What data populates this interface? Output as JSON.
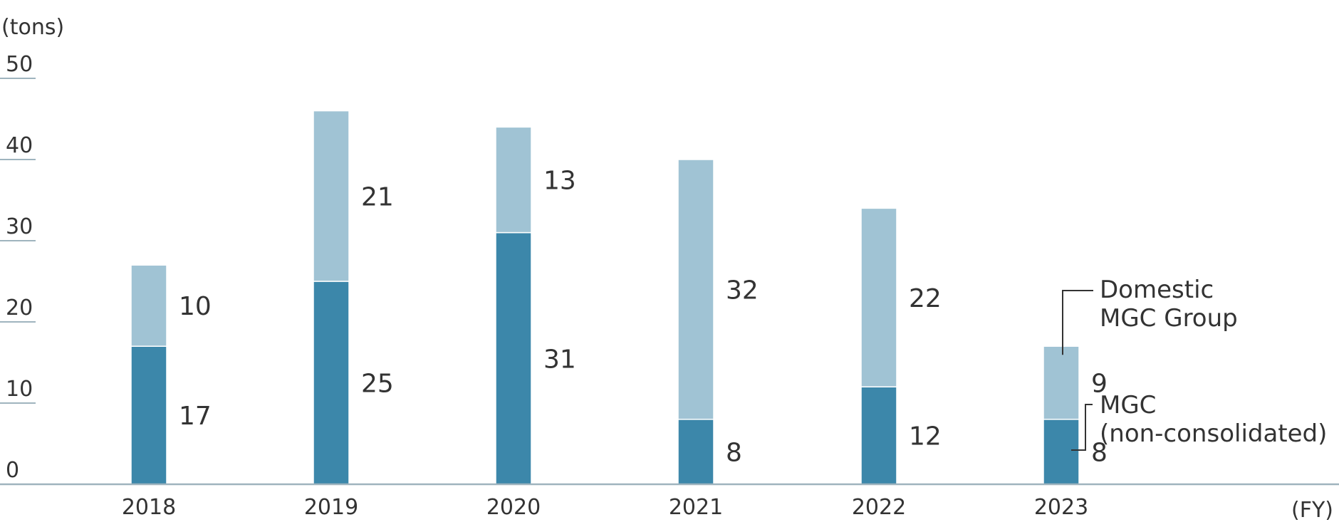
{
  "chart_data": {
    "type": "bar",
    "stacked": true,
    "title": "",
    "y_unit_label": "(tons)",
    "x_unit_label": "(FY)",
    "ylim": [
      0,
      50
    ],
    "y_ticks": [
      "0",
      "10",
      "20",
      "30",
      "40",
      "50"
    ],
    "categories": [
      "2018",
      "2019",
      "2020",
      "2021",
      "2022",
      "2023"
    ],
    "series": [
      {
        "name": "MGC (non-consolidated)",
        "legend_lines": [
          "MGC",
          "(non-consolidated)"
        ],
        "values": [
          17,
          25,
          31,
          8,
          12,
          8
        ],
        "labels": [
          "17",
          "25",
          "31",
          "8",
          "12",
          "8"
        ],
        "color": "#3c87aa"
      },
      {
        "name": "Domestic MGC Group",
        "legend_lines": [
          "Domestic",
          "MGC Group"
        ],
        "values": [
          10,
          21,
          13,
          32,
          22,
          9
        ],
        "labels": [
          "10",
          "21",
          "13",
          "32",
          "22",
          "9"
        ],
        "color": "#a0c3d4"
      }
    ],
    "grid": false,
    "legend": "annotated-right-of-last-bar"
  }
}
